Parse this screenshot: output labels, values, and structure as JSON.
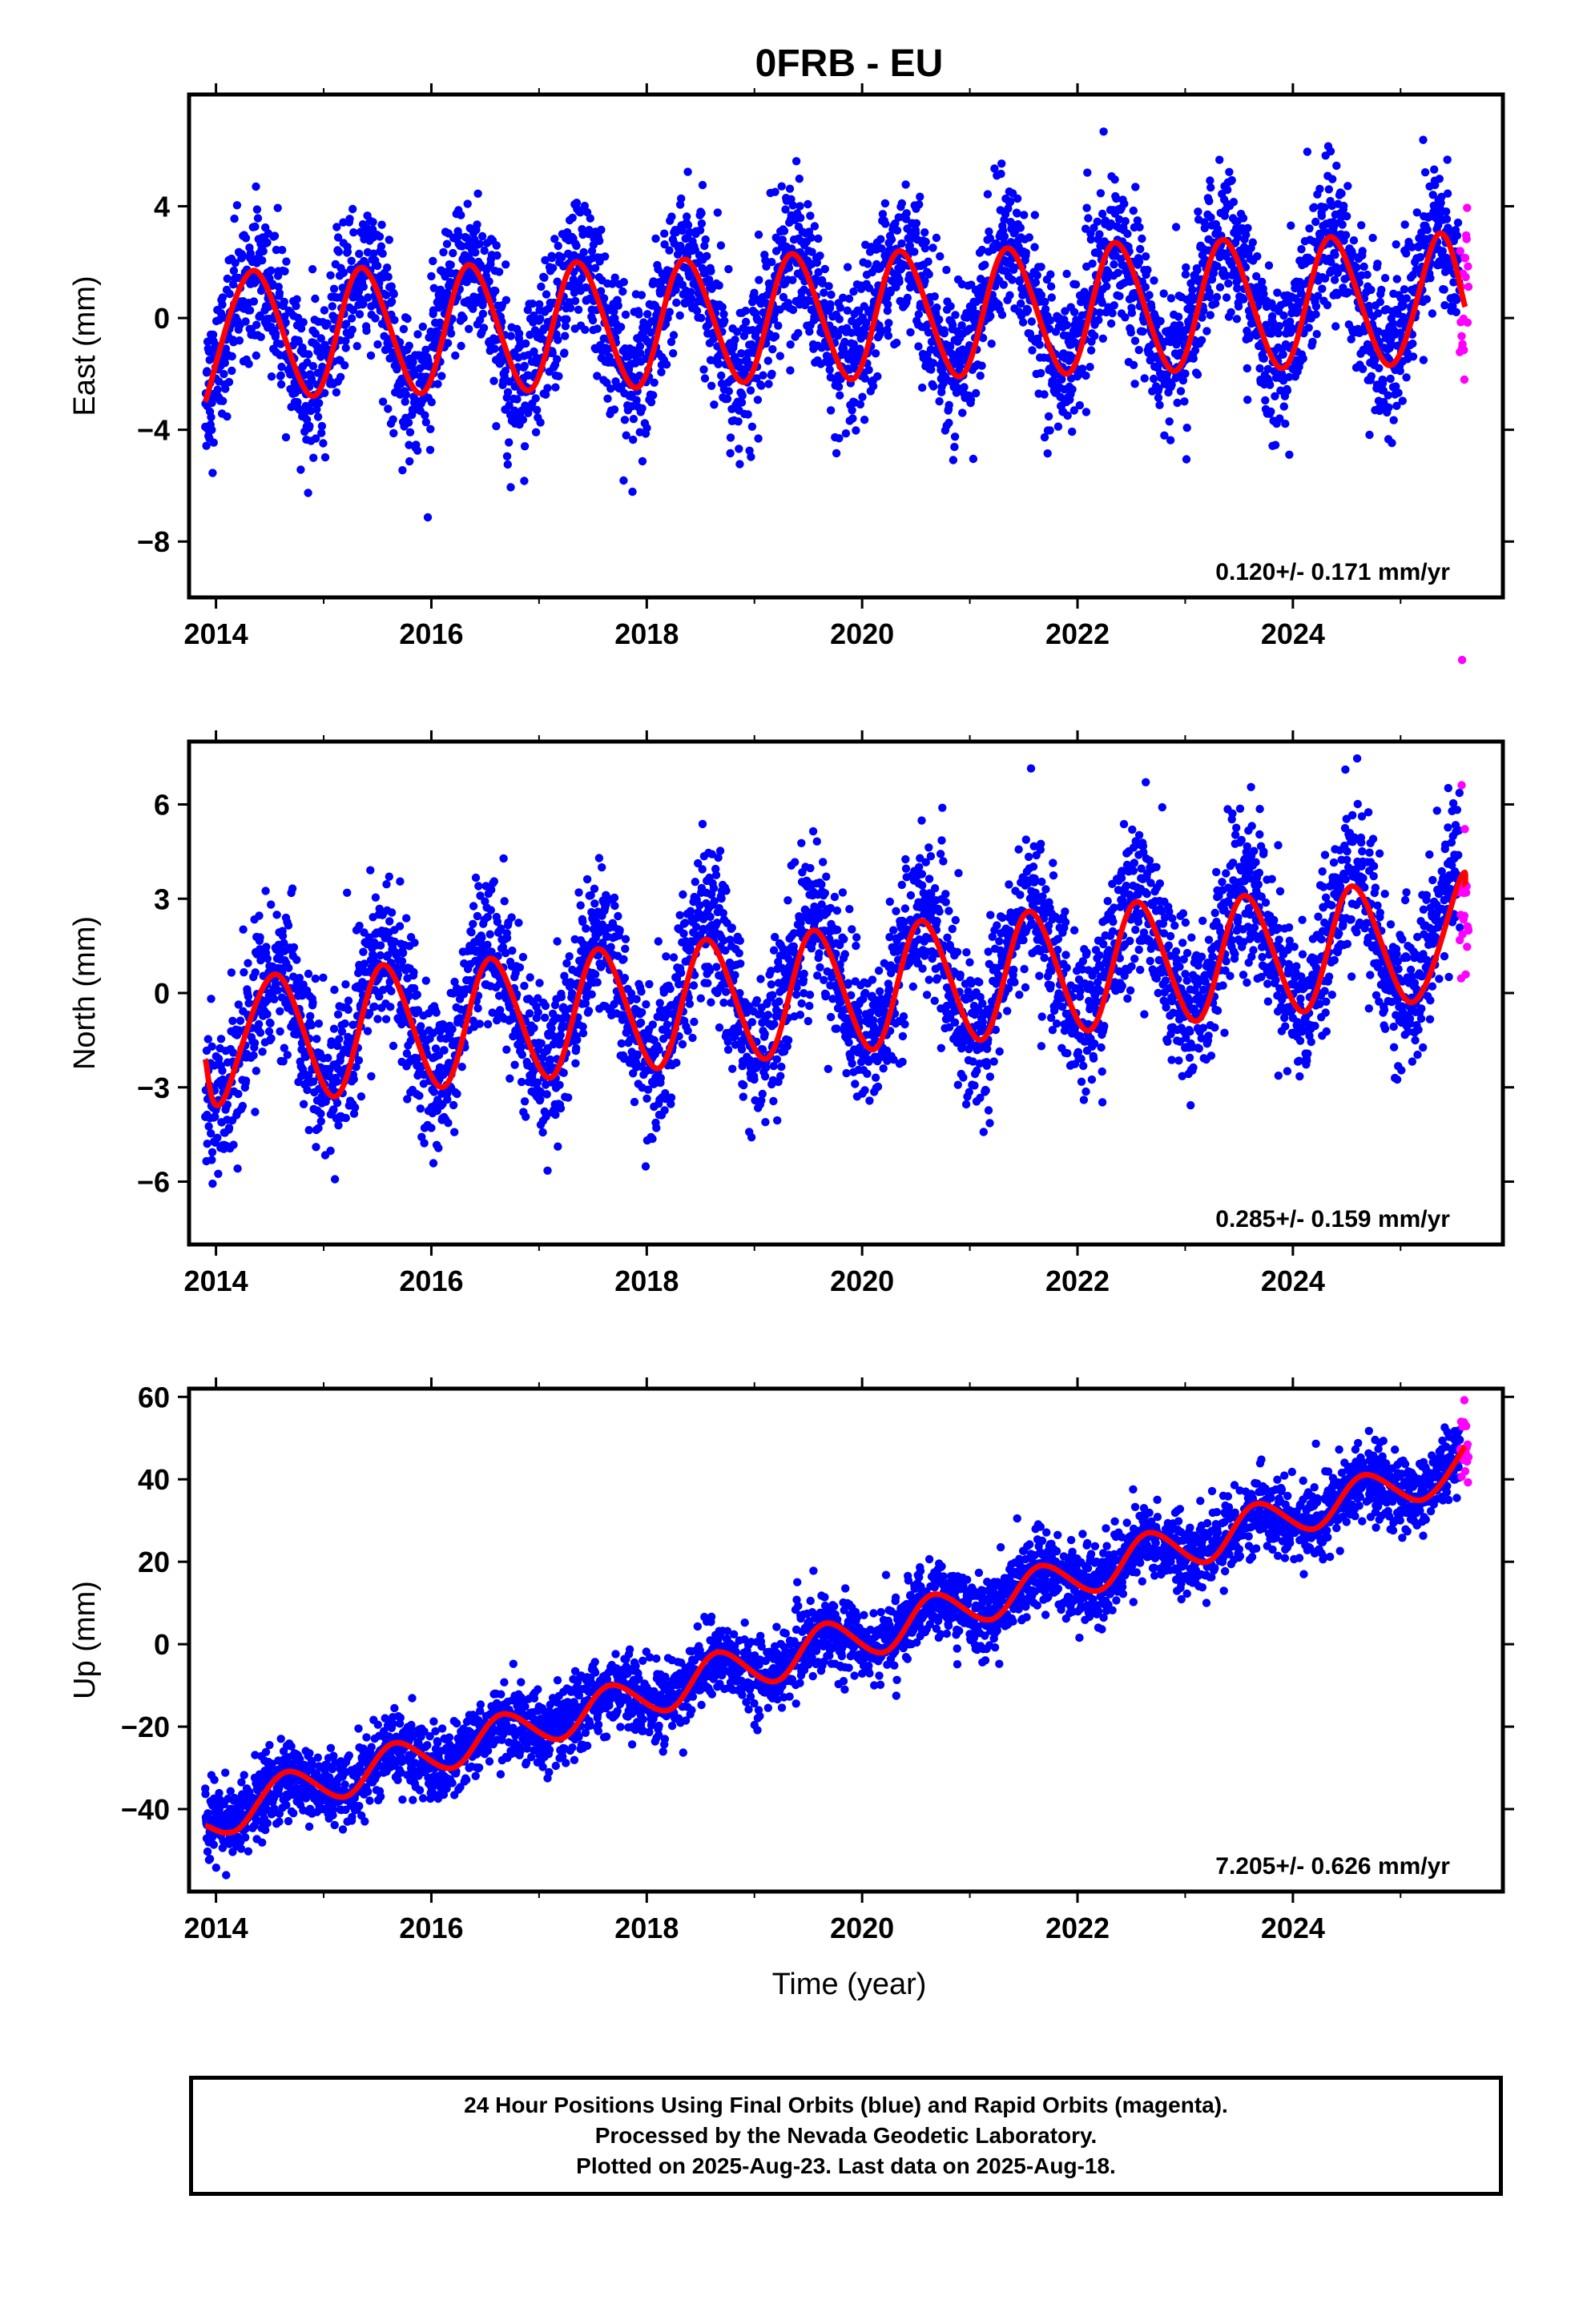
{
  "chart_data": {
    "title": "0FRB - EU",
    "type": "scatter",
    "colors": {
      "final": "#0000ff",
      "rapid": "#ff00ff",
      "fit": "#ff0000"
    },
    "x_label": "Time (year)",
    "x_range": [
      2013.75,
      2025.95
    ],
    "x_ticks": [
      "2014",
      "2016",
      "2018",
      "2020",
      "2022",
      "2024"
    ],
    "grid": false,
    "panels": [
      {
        "ylabel": "East (mm)",
        "ylim": [
          -10,
          8
        ],
        "yticks": [
          "4",
          "0",
          "−4",
          "−8"
        ],
        "velocity": "0.120+/- 0.171 mm/yr",
        "trend": {
          "offset": -0.5,
          "rate": 0.12,
          "amplitude": 2.1,
          "peak_phase": 0.36,
          "t0": 2014.0
        },
        "scatter_sd": 1.3,
        "fit_points": [
          [
            2013.9,
            -3.0
          ],
          [
            2014.35,
            1.7
          ],
          [
            2014.9,
            -2.8
          ],
          [
            2015.35,
            1.8
          ],
          [
            2015.9,
            -2.7
          ],
          [
            2016.35,
            1.9
          ],
          [
            2016.9,
            -2.6
          ],
          [
            2017.35,
            2.0
          ],
          [
            2017.9,
            -2.5
          ],
          [
            2018.35,
            2.1
          ],
          [
            2018.9,
            -2.3
          ],
          [
            2019.35,
            2.3
          ],
          [
            2019.9,
            -2.2
          ],
          [
            2020.35,
            2.4
          ],
          [
            2020.9,
            -2.1
          ],
          [
            2021.35,
            2.5
          ],
          [
            2021.9,
            -2.0
          ],
          [
            2022.35,
            2.7
          ],
          [
            2022.9,
            -1.9
          ],
          [
            2023.35,
            2.8
          ],
          [
            2023.9,
            -1.8
          ],
          [
            2024.35,
            2.9
          ],
          [
            2024.9,
            -1.7
          ],
          [
            2025.35,
            3.0
          ],
          [
            2025.6,
            0.4
          ]
        ]
      },
      {
        "ylabel": "North (mm)",
        "ylim": [
          -8,
          8
        ],
        "yticks": [
          "6",
          "3",
          "0",
          "−3",
          "−6"
        ],
        "velocity": "0.285+/- 0.159 mm/yr",
        "trend": {
          "offset": -1.3,
          "rate": 0.285,
          "amplitude": 2.0,
          "peak_phase": 0.55,
          "t0": 2014.0
        },
        "scatter_sd": 1.2,
        "fit_points": [
          [
            2013.9,
            -2.1
          ],
          [
            2014.05,
            -3.5
          ],
          [
            2014.55,
            0.6
          ],
          [
            2015.1,
            -3.3
          ],
          [
            2015.55,
            0.9
          ],
          [
            2016.1,
            -3.0
          ],
          [
            2016.55,
            1.1
          ],
          [
            2017.1,
            -2.7
          ],
          [
            2017.55,
            1.4
          ],
          [
            2018.1,
            -2.4
          ],
          [
            2018.55,
            1.7
          ],
          [
            2019.1,
            -2.1
          ],
          [
            2019.55,
            2.0
          ],
          [
            2020.1,
            -1.8
          ],
          [
            2020.55,
            2.3
          ],
          [
            2021.1,
            -1.5
          ],
          [
            2021.55,
            2.6
          ],
          [
            2022.1,
            -1.2
          ],
          [
            2022.55,
            2.9
          ],
          [
            2023.1,
            -0.9
          ],
          [
            2023.55,
            3.1
          ],
          [
            2024.1,
            -0.6
          ],
          [
            2024.55,
            3.4
          ],
          [
            2025.1,
            -0.3
          ],
          [
            2025.55,
            3.6
          ],
          [
            2025.6,
            3.4
          ]
        ]
      },
      {
        "ylabel": "Up (mm)",
        "ylim": [
          -60,
          62
        ],
        "yticks": [
          "60",
          "40",
          "20",
          "0",
          "−20",
          "−40"
        ],
        "velocity": "7.205+/- 0.626 mm/yr",
        "trend": {
          "offset": -41,
          "rate": 7.205,
          "amplitude": 3.5,
          "peak_phase": 0.65,
          "t0": 2014.0
        },
        "scatter_sd": 4.5,
        "fit_points": [
          [
            2013.9,
            -44
          ],
          [
            2014.2,
            -45
          ],
          [
            2014.65,
            -31
          ],
          [
            2015.2,
            -37
          ],
          [
            2015.65,
            -24
          ],
          [
            2016.2,
            -30
          ],
          [
            2016.65,
            -17
          ],
          [
            2017.2,
            -23
          ],
          [
            2017.65,
            -10
          ],
          [
            2018.2,
            -16
          ],
          [
            2018.65,
            -2
          ],
          [
            2019.2,
            -9
          ],
          [
            2019.65,
            5
          ],
          [
            2020.2,
            -2
          ],
          [
            2020.65,
            12
          ],
          [
            2021.2,
            6
          ],
          [
            2021.65,
            19
          ],
          [
            2022.2,
            13
          ],
          [
            2022.65,
            27
          ],
          [
            2023.2,
            20
          ],
          [
            2023.65,
            34
          ],
          [
            2024.2,
            28
          ],
          [
            2024.65,
            41
          ],
          [
            2025.2,
            35
          ],
          [
            2025.6,
            48
          ]
        ]
      }
    ],
    "rapid_samples": 20,
    "rapid_start": 2025.55,
    "rapid_end": 2025.63
  },
  "footer": {
    "line1": "24 Hour Positions Using Final Orbits (blue) and Rapid Orbits (magenta).",
    "line2": "Processed by the Nevada Geodetic Laboratory.",
    "line3": "Plotted on 2025-Aug-23. Last data on 2025-Aug-18."
  }
}
